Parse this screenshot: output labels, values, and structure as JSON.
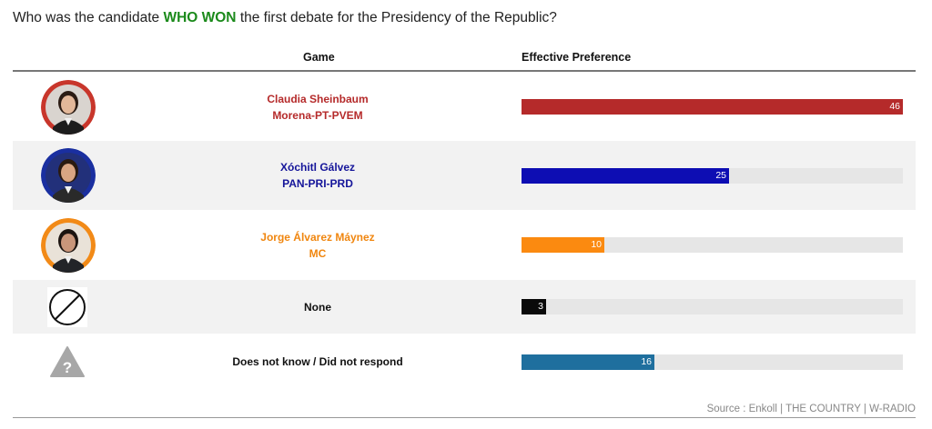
{
  "question": {
    "before": "Who was the candidate ",
    "highlight": "WHO WON",
    "after": " the first debate for the Presidency of the Republic?"
  },
  "columns": {
    "game": "Game",
    "preference": "Effective Preference"
  },
  "colors": {
    "highlight": "#1b8a1b",
    "track": "#e6e6e6"
  },
  "chart_data": {
    "type": "bar",
    "orientation": "horizontal",
    "xlim": [
      0,
      46
    ],
    "categories": [
      "Claudia Sheinbaum Morena-PT-PVEM",
      "Xóchitl Gálvez PAN-PRI-PRD",
      "Jorge Álvarez Máynez MC",
      "None",
      "Does not know / Did not respond"
    ],
    "values": [
      46,
      25,
      10,
      3,
      16
    ],
    "rows": [
      {
        "name": "Claudia Sheinbaum",
        "party": "Morena-PT-PVEM",
        "value": 46,
        "value_label": "46",
        "color": "#b52a2a",
        "name_color": "#b52a2a",
        "icon": "claudia-sheinbaum-portrait-icon",
        "shaded": false
      },
      {
        "name": "Xóchitl Gálvez",
        "party": "PAN-PRI-PRD",
        "value": 25,
        "value_label": "25",
        "color": "#0d0db3",
        "name_color": "#15159a",
        "icon": "xochitl-galvez-portrait-icon",
        "shaded": true
      },
      {
        "name": "Jorge Álvarez Máynez",
        "party": "MC",
        "value": 10,
        "value_label": "10",
        "color": "#fb8a10",
        "name_color": "#f0860f",
        "icon": "jorge-alvarez-maynez-portrait-icon",
        "shaded": false
      },
      {
        "name": "None",
        "party": "",
        "value": 3,
        "value_label": "3",
        "color": "#0a0a0a",
        "name_color": "#111111",
        "icon": "none-prohibited-icon",
        "shaded": true
      },
      {
        "name": "Does not know / Did not respond",
        "party": "",
        "value": 16,
        "value_label": "16",
        "color": "#1f6f9e",
        "name_color": "#111111",
        "icon": "question-mark-icon",
        "shaded": false
      }
    ]
  },
  "source": "Source : Enkoll | THE COUNTRY | W-RADIO"
}
